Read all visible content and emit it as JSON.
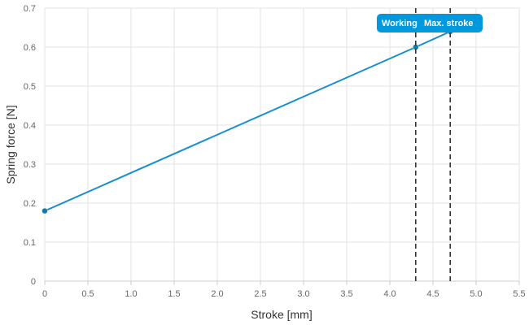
{
  "chart_data": {
    "type": "line",
    "xlabel": "Stroke [mm]",
    "ylabel": "Spring force [N]",
    "xlim": [
      0,
      5.5
    ],
    "ylim": [
      0,
      0.7
    ],
    "x_ticks": [
      "0",
      "0.5",
      "1.0",
      "1.5",
      "2.0",
      "2.5",
      "3.0",
      "3.5",
      "4.0",
      "4.5",
      "5.0",
      "5.5"
    ],
    "y_ticks": [
      "0",
      "0.1",
      "0.2",
      "0.3",
      "0.4",
      "0.5",
      "0.6",
      "0.7"
    ],
    "grid": true,
    "series": [
      {
        "color": "#1a8fce",
        "points": [
          {
            "x": 0,
            "y": 0.18
          },
          {
            "x": 4.3,
            "y": 0.6
          },
          {
            "x": 4.7,
            "y": 0.64
          }
        ]
      }
    ],
    "markers": [
      {
        "x": 4.3,
        "label": "Working"
      },
      {
        "x": 4.7,
        "label": "Max. stroke"
      }
    ],
    "tooltip_color": "#0099dd"
  }
}
